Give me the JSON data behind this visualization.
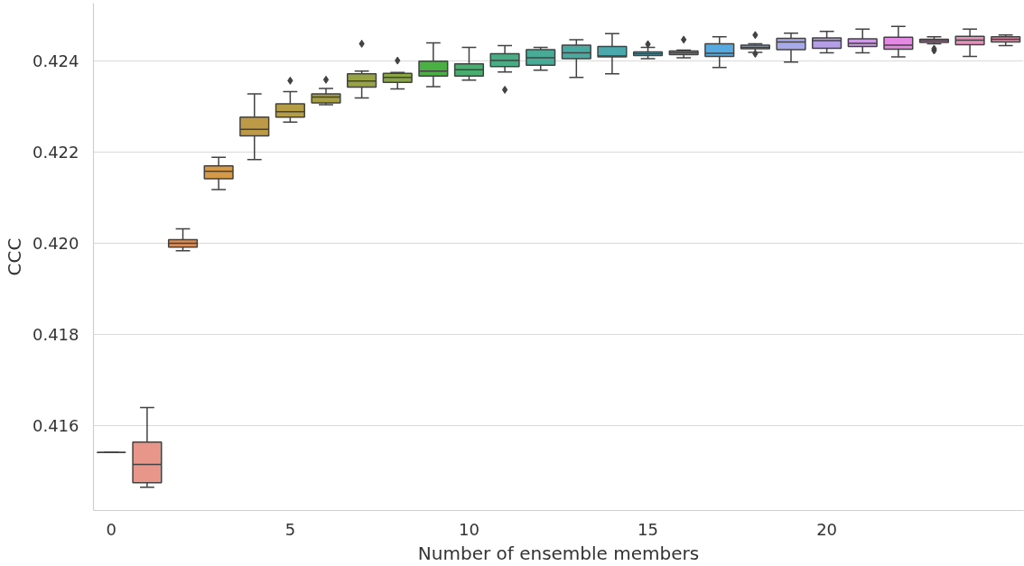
{
  "chart_data": {
    "type": "box",
    "xlabel": "Number of ensemble members",
    "ylabel": "CCC",
    "categories": [
      "0",
      null,
      null,
      null,
      null,
      "5",
      null,
      null,
      null,
      null,
      "10",
      null,
      null,
      null,
      null,
      "15",
      null,
      null,
      null,
      null,
      "20",
      null,
      null,
      null,
      null,
      null
    ],
    "colors": [
      "#424242",
      "#e8968a",
      "#dc8d55",
      "#d49a48",
      "#bd9a48",
      "#b59c47",
      "#a59e45",
      "#97a344",
      "#8aa643",
      "#4bb043",
      "#49ad6f",
      "#4aac85",
      "#49ab96",
      "#4aaaa2",
      "#49a9ad",
      "#4aa8b8",
      "#4aa6c6",
      "#55aadf",
      "#7ba6de",
      "#a8a9e8",
      "#b49ee6",
      "#cd9ae6",
      "#e489e3",
      "#e48ac6",
      "#e891bc",
      "#e78ea8"
    ],
    "boxes": [
      {
        "low": 0.41541,
        "q1": 0.41541,
        "median": 0.41541,
        "q3": 0.41541,
        "high": 0.41541
      },
      {
        "low": 0.41465,
        "q1": 0.41475,
        "median": 0.41515,
        "q3": 0.41564,
        "high": 0.4164
      },
      {
        "low": 0.41984,
        "q1": 0.41992,
        "median": 0.42,
        "q3": 0.42008,
        "high": 0.42032
      },
      {
        "low": 0.42118,
        "q1": 0.42142,
        "median": 0.42158,
        "q3": 0.4217,
        "high": 0.42189
      },
      {
        "low": 0.42184,
        "q1": 0.42236,
        "median": 0.4225,
        "q3": 0.42277,
        "high": 0.42328
      },
      {
        "low": 0.42266,
        "q1": 0.42277,
        "median": 0.42289,
        "q3": 0.42306,
        "high": 0.42333,
        "outliers": [
          0.42357
        ]
      },
      {
        "low": 0.42304,
        "q1": 0.42308,
        "median": 0.42321,
        "q3": 0.42328,
        "high": 0.4234,
        "outliers": [
          0.42359
        ]
      },
      {
        "low": 0.42319,
        "q1": 0.42343,
        "median": 0.42356,
        "q3": 0.42372,
        "high": 0.42378,
        "outliers": [
          0.42438
        ]
      },
      {
        "low": 0.42339,
        "q1": 0.42353,
        "median": 0.42364,
        "q3": 0.42373,
        "high": 0.42375,
        "outliers": [
          0.42401
        ]
      },
      {
        "low": 0.42344,
        "q1": 0.42367,
        "median": 0.42378,
        "q3": 0.424,
        "high": 0.4244
      },
      {
        "low": 0.42358,
        "q1": 0.42367,
        "median": 0.42381,
        "q3": 0.42394,
        "high": 0.4243
      },
      {
        "low": 0.42376,
        "q1": 0.42388,
        "median": 0.42401,
        "q3": 0.42416,
        "high": 0.42434,
        "outliers": [
          0.42337
        ]
      },
      {
        "low": 0.4238,
        "q1": 0.42391,
        "median": 0.42407,
        "q3": 0.42425,
        "high": 0.4243
      },
      {
        "low": 0.42364,
        "q1": 0.42405,
        "median": 0.42418,
        "q3": 0.42435,
        "high": 0.42447
      },
      {
        "low": 0.42372,
        "q1": 0.42409,
        "median": 0.42411,
        "q3": 0.42432,
        "high": 0.4246
      },
      {
        "low": 0.42405,
        "q1": 0.42412,
        "median": 0.42416,
        "q3": 0.4242,
        "high": 0.4243,
        "outliers": [
          0.42437
        ]
      },
      {
        "low": 0.42407,
        "q1": 0.42414,
        "median": 0.42418,
        "q3": 0.42422,
        "high": 0.42424,
        "outliers": [
          0.42447
        ]
      },
      {
        "low": 0.42386,
        "q1": 0.4241,
        "median": 0.42417,
        "q3": 0.42438,
        "high": 0.42453
      },
      {
        "low": 0.42419,
        "q1": 0.42427,
        "median": 0.4243,
        "q3": 0.42435,
        "high": 0.42438,
        "outliers": [
          0.42457,
          0.42416
        ]
      },
      {
        "low": 0.42398,
        "q1": 0.42425,
        "median": 0.42442,
        "q3": 0.4245,
        "high": 0.42461
      },
      {
        "low": 0.42418,
        "q1": 0.42428,
        "median": 0.42445,
        "q3": 0.42451,
        "high": 0.42465
      },
      {
        "low": 0.42418,
        "q1": 0.42432,
        "median": 0.42439,
        "q3": 0.42449,
        "high": 0.4247
      },
      {
        "low": 0.42409,
        "q1": 0.42426,
        "median": 0.42435,
        "q3": 0.42452,
        "high": 0.42476
      },
      {
        "low": 0.42438,
        "q1": 0.42441,
        "median": 0.42445,
        "q3": 0.42448,
        "high": 0.42453,
        "outliers": [
          0.42427,
          0.42423
        ]
      },
      {
        "low": 0.4241,
        "q1": 0.42436,
        "median": 0.42446,
        "q3": 0.42454,
        "high": 0.4247
      },
      {
        "low": 0.42434,
        "q1": 0.42442,
        "median": 0.42448,
        "q3": 0.42453,
        "high": 0.42457
      }
    ],
    "ylim": [
      0.41414,
      0.42527
    ],
    "yticks": [
      0.416,
      0.418,
      {
        "value": 0.42,
        "label": "0.420"
      },
      0.422,
      0.424
    ],
    "grid": "y",
    "marker": "diamond"
  }
}
